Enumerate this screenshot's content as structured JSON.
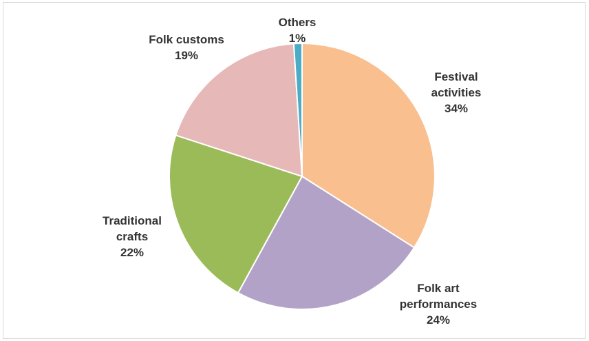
{
  "chart_data": {
    "type": "pie",
    "categories": [
      "Festival activities",
      "Folk art performances",
      "Traditional crafts",
      "Folk customs",
      "Others"
    ],
    "values": [
      34,
      24,
      22,
      19,
      1
    ],
    "unit": "%",
    "colors": [
      "#f9bf8f",
      "#b3a2c7",
      "#9bbb59",
      "#e6b9b8",
      "#4bacc6"
    ],
    "labels": [
      {
        "lines": [
          "Festival",
          "activities"
        ],
        "value": "34%"
      },
      {
        "lines": [
          "Folk art",
          "performances"
        ],
        "value": "24%"
      },
      {
        "lines": [
          "Traditional",
          "crafts"
        ],
        "value": "22%"
      },
      {
        "lines": [
          "Folk customs"
        ],
        "value": "19%"
      },
      {
        "lines": [
          "Others"
        ],
        "value": "1%"
      }
    ],
    "start_angle_deg": 0,
    "direction": "clockwise",
    "legend": "none"
  }
}
